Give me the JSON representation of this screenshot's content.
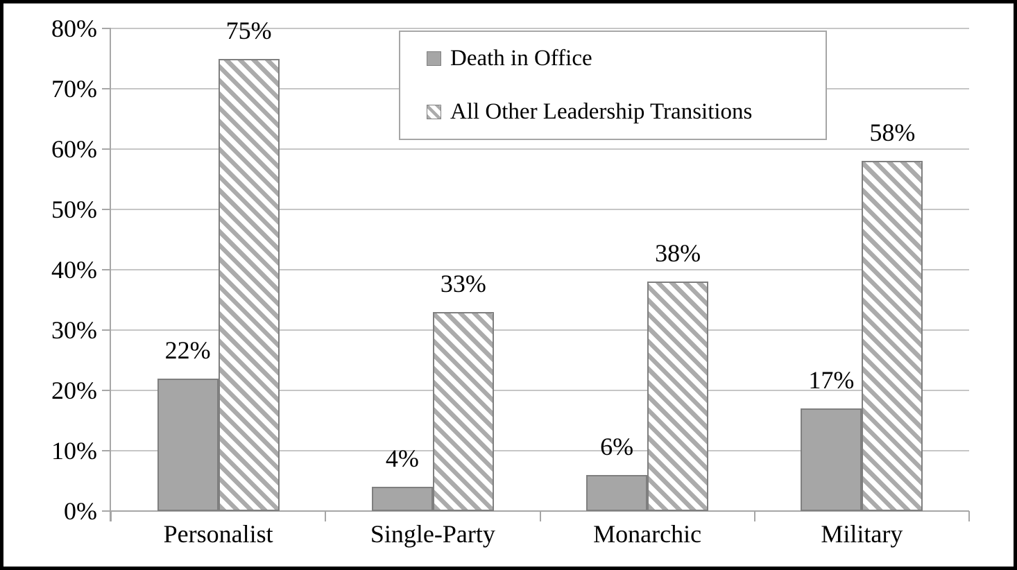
{
  "chart_data": {
    "type": "bar",
    "title": "",
    "categories": [
      "Personalist",
      "Single-Party",
      "Monarchic",
      "Military"
    ],
    "series": [
      {
        "name": "Death in Office",
        "pattern": "solid",
        "values": [
          22,
          4,
          6,
          17
        ],
        "labels": [
          "22%",
          "4%",
          "6%",
          "17%"
        ]
      },
      {
        "name": "All Other Leadership Transitions",
        "pattern": "diagonal-stripe",
        "values": [
          75,
          33,
          38,
          58
        ],
        "labels": [
          "75%",
          "33%",
          "38%",
          "58%"
        ]
      }
    ],
    "y_axis": {
      "min": 0,
      "max": 80,
      "tick_labels_top_to_bottom": [
        "80%",
        "70%",
        "60%",
        "50%",
        "40%",
        "30%",
        "20%",
        "10%",
        "0%"
      ]
    },
    "xlabel": "",
    "ylabel": "",
    "grid": true,
    "legend_position": "top-center"
  },
  "colors": {
    "background": "#ffffff",
    "frame": "#000000",
    "axis": "#a6a6a6",
    "gridline": "#c6c6c6",
    "bar_fill": "#a6a6a6",
    "bar_border": "#7f7f7f",
    "stripe": "#ababab",
    "legend_border": "#a6a6a6",
    "text": "#000000"
  }
}
